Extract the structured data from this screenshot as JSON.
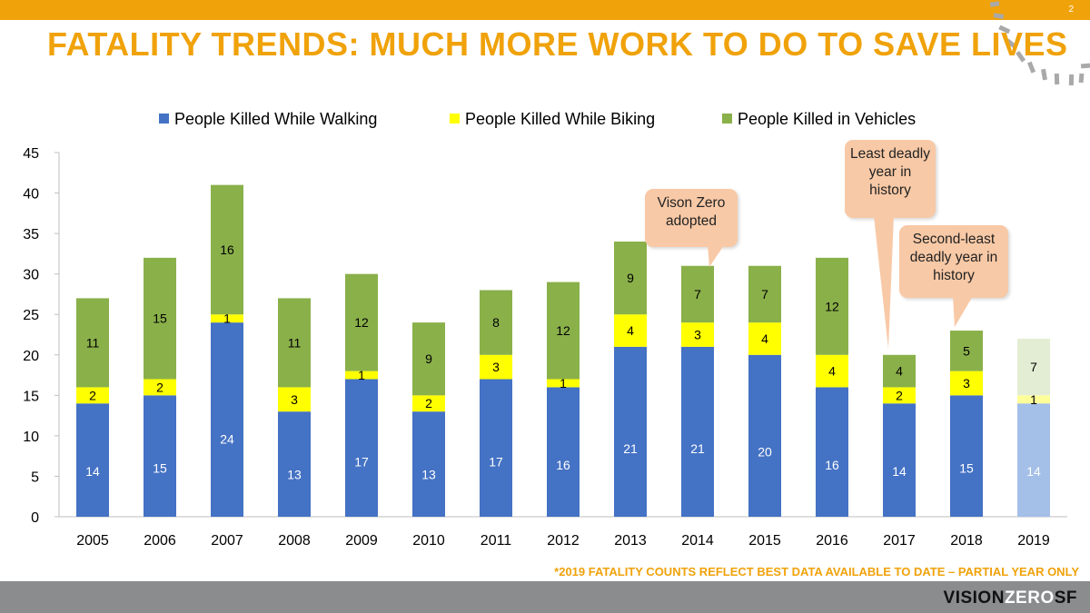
{
  "slide": {
    "number": "2",
    "title": "FATALITY TRENDS: MUCH MORE WORK TO DO TO SAVE LIVES",
    "footnote": "*2019 FATALITY COUNTS REFLECT BEST DATA AVAILABLE TO DATE – PARTIAL YEAR ONLY",
    "logo": {
      "vision": "VISION",
      "zero": "ZERO",
      "sf": "SF"
    }
  },
  "callouts": [
    {
      "text": "Vison Zero adopted"
    },
    {
      "text": "Least deadly year in history"
    },
    {
      "text": "Second-least deadly year in history"
    }
  ],
  "colors": {
    "accent": "#f0a20a",
    "walking": "#4472c4",
    "biking": "#ffff00",
    "vehicles": "#8ab04a",
    "walking_partial": "#a4bfe8",
    "biking_partial": "#ffff99",
    "vehicles_partial": "#e3edd3",
    "callout": "#f8c9a6"
  },
  "chart_data": {
    "type": "bar",
    "stacked": true,
    "title": "",
    "xlabel": "",
    "ylabel": "",
    "ylim": [
      0,
      45
    ],
    "yticks": [
      0,
      5,
      10,
      15,
      20,
      25,
      30,
      35,
      40,
      45
    ],
    "legend_position": "top",
    "categories": [
      "2005",
      "2006",
      "2007",
      "2008",
      "2009",
      "2010",
      "2011",
      "2012",
      "2013",
      "2014",
      "2015",
      "2016",
      "2017",
      "2018",
      "2019"
    ],
    "partial_year": "2019",
    "series": [
      {
        "name": "People Killed While Walking",
        "key": "walking",
        "values": [
          14,
          15,
          24,
          13,
          17,
          13,
          17,
          16,
          21,
          21,
          20,
          16,
          14,
          15,
          14
        ]
      },
      {
        "name": "People Killed While Biking",
        "key": "biking",
        "values": [
          2,
          2,
          1,
          3,
          1,
          2,
          3,
          1,
          4,
          3,
          4,
          4,
          2,
          3,
          1
        ]
      },
      {
        "name": "People Killed in Vehicles",
        "key": "vehicles",
        "values": [
          11,
          15,
          16,
          11,
          12,
          9,
          8,
          12,
          9,
          7,
          7,
          12,
          4,
          5,
          7
        ]
      }
    ]
  }
}
